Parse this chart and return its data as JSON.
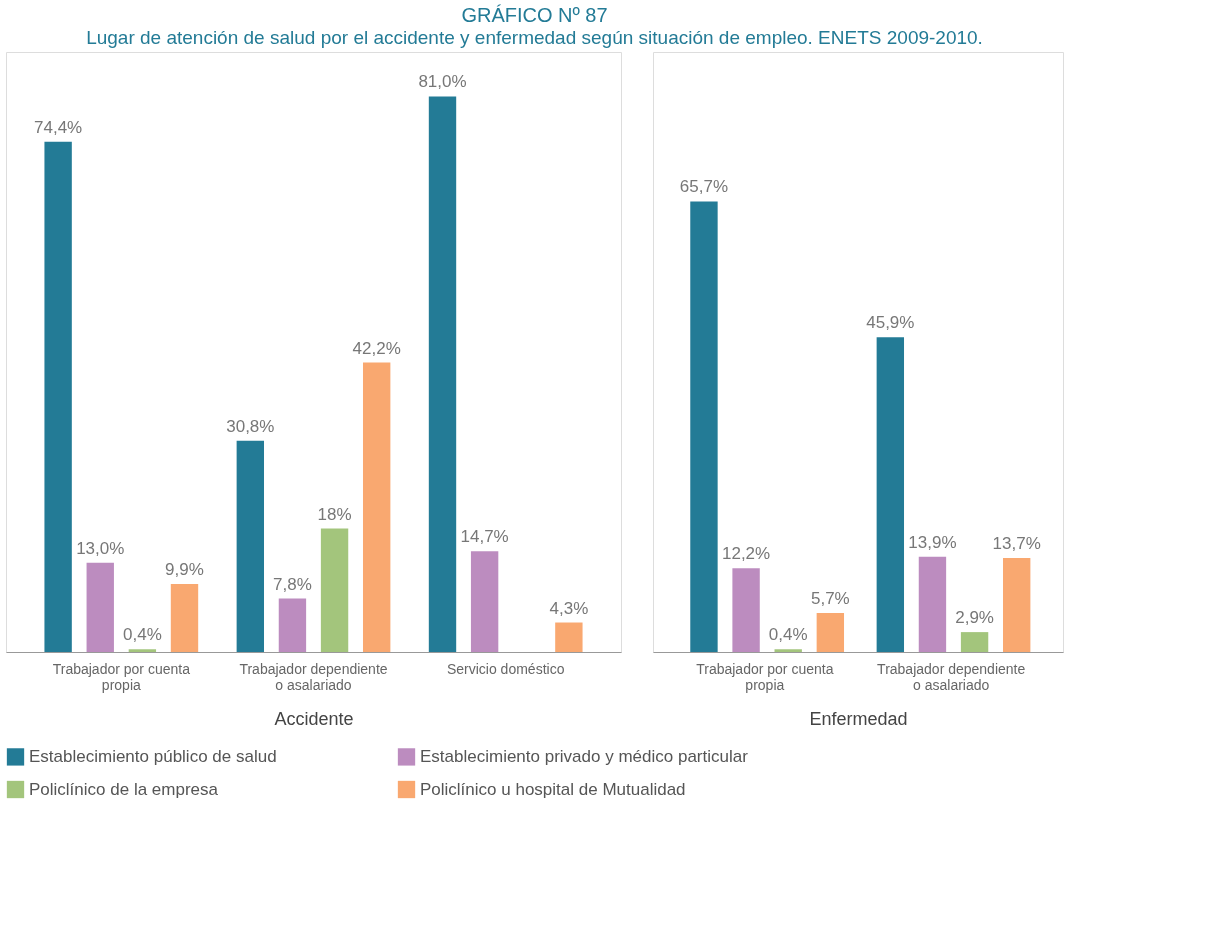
{
  "chart_data": [
    {
      "type": "bar",
      "title": "GRÁFICO Nº 87",
      "subtitle": "Lugar de atención de salud por el accidente y enfermedad según situación de empleo. ENETS 2009-2010.",
      "xlabel": "Accidente",
      "categories": [
        "Trabajador por cuenta propia",
        "Trabajador dependiente o asalariado",
        "Servicio doméstico"
      ],
      "tick_labels": "x",
      "legend": "bottom",
      "series": [
        {
          "name": "Establecimiento público de salud",
          "color": "#237b96",
          "values": [
            74.4,
            30.8,
            81.0
          ],
          "value_labels": [
            "74,4%",
            "30,8%",
            "81,0%"
          ]
        },
        {
          "name": "Establecimiento privado y médico particular",
          "color": "#bc8cbf",
          "values": [
            13.0,
            7.8,
            14.7
          ],
          "value_labels": [
            "13,0%",
            "7,8%",
            "14,7%"
          ]
        },
        {
          "name": "Policlínico de la empresa",
          "color": "#a3c57c",
          "values": [
            0.4,
            18,
            null
          ],
          "value_labels": [
            "0,4%",
            "18%",
            null
          ]
        },
        {
          "name": "Policlínico u hospital de Mutualidad",
          "color": "#f9a870",
          "values": [
            9.9,
            42.2,
            4.3
          ],
          "value_labels": [
            "9,9%",
            "42,2%",
            "4,3%"
          ]
        }
      ]
    },
    {
      "type": "bar",
      "xlabel": "Enfermedad",
      "categories": [
        "Trabajador por cuenta propia",
        "Trabajador dependiente o asalariado"
      ],
      "tick_labels": "x",
      "legend": "bottom",
      "series": [
        {
          "name": "Establecimiento público de salud",
          "color": "#237b96",
          "values": [
            65.7,
            45.9
          ],
          "value_labels": [
            "65,7%",
            "45,9%"
          ]
        },
        {
          "name": "Establecimiento privado y médico particular",
          "color": "#bc8cbf",
          "values": [
            12.2,
            13.9
          ],
          "value_labels": [
            "12,2%",
            "13,9%"
          ]
        },
        {
          "name": "Policlínico de la empresa",
          "color": "#a3c57c",
          "values": [
            0.4,
            2.9
          ],
          "value_labels": [
            "0,4%",
            "2,9%"
          ]
        },
        {
          "name": "Policlínico u hospital de Mutualidad",
          "color": "#f9a870",
          "values": [
            5.7,
            13.7
          ],
          "value_labels": [
            "5,7%",
            "13,7%"
          ]
        }
      ]
    }
  ]
}
